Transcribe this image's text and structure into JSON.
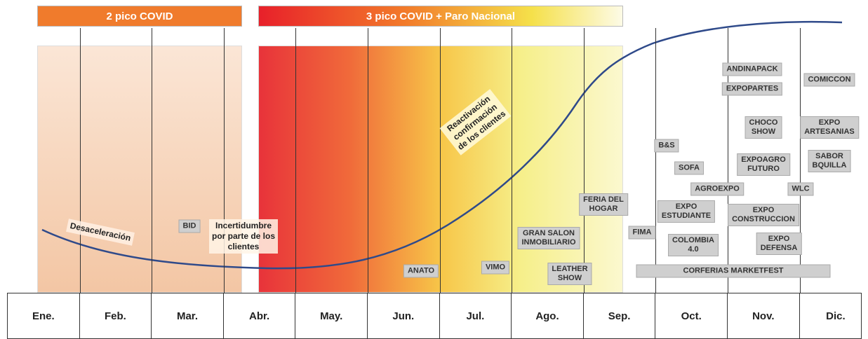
{
  "banners": [
    "2 pico COVID",
    "3 pico COVID + Paro Nacional"
  ],
  "months": [
    "Ene.",
    "Feb.",
    "Mar.",
    "Abr.",
    "May.",
    "Jun.",
    "Jul.",
    "Ago.",
    "Sep.",
    "Oct.",
    "Nov.",
    "Dic."
  ],
  "annotations": [
    [
      "Desaceleración"
    ],
    [
      "Incertidumbre",
      "por parte de los",
      "clientes"
    ],
    [
      "Reactivación",
      "confirmación",
      "de los clientes"
    ]
  ],
  "events": [
    [
      "BID"
    ],
    [
      "ANATO"
    ],
    [
      "VIMO"
    ],
    [
      "GRAN SALON",
      "INMOBILIARIO"
    ],
    [
      "LEATHER",
      "SHOW"
    ],
    [
      "FERIA DEL",
      "HOGAR"
    ],
    [
      "FIMA"
    ],
    [
      "B&S"
    ],
    [
      "SOFA"
    ],
    [
      "AGROEXPO"
    ],
    [
      "EXPO",
      "ESTUDIANTE"
    ],
    [
      "COLOMBIA",
      "4.0"
    ],
    [
      "CORFERIAS MARKETFEST"
    ],
    [
      "ANDINAPACK"
    ],
    [
      "EXPOPARTES"
    ],
    [
      "CHOCO",
      "SHOW"
    ],
    [
      "EXPOAGRO",
      "FUTURO"
    ],
    [
      "EXPO",
      "CONSTRUCCION"
    ],
    [
      "EXPO",
      "DEFENSA"
    ],
    [
      "WLC"
    ],
    [
      "COMICCON"
    ],
    [
      "EXPO",
      "ARTESANIAS"
    ],
    [
      "SABOR",
      "BQUILLA"
    ]
  ]
}
